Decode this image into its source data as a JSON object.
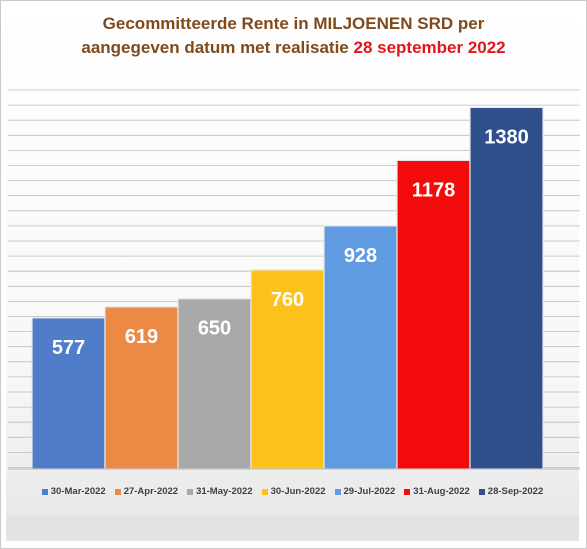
{
  "chart_data": {
    "type": "bar",
    "title_line1": "Gecommitteerde Rente in MILJOENEN SRD per",
    "title_line2": "aangegeven datum met realisatie",
    "title_highlight": "28 september 2022",
    "categories": [
      "30-Mar-2022",
      "27-Apr-2022",
      "31-May-2022",
      "30-Jun-2022",
      "29-Jul-2022",
      "31-Aug-2022",
      "28-Sep-2022"
    ],
    "values": [
      577,
      619,
      650,
      760,
      928,
      1178,
      1380
    ],
    "value_labels": [
      "577",
      "619",
      "650",
      "760",
      "928",
      "1178",
      "1380"
    ],
    "colors": [
      "#4f7dc9",
      "#ec8a45",
      "#a9a9a9",
      "#fcc11a",
      "#5f9be0",
      "#f20b0b",
      "#2f4f8c"
    ],
    "title_color": "#7f4a1c",
    "highlight_color": "#e8141b",
    "ylim": [
      0,
      1500
    ],
    "grid": true,
    "legend_position": "bottom"
  }
}
